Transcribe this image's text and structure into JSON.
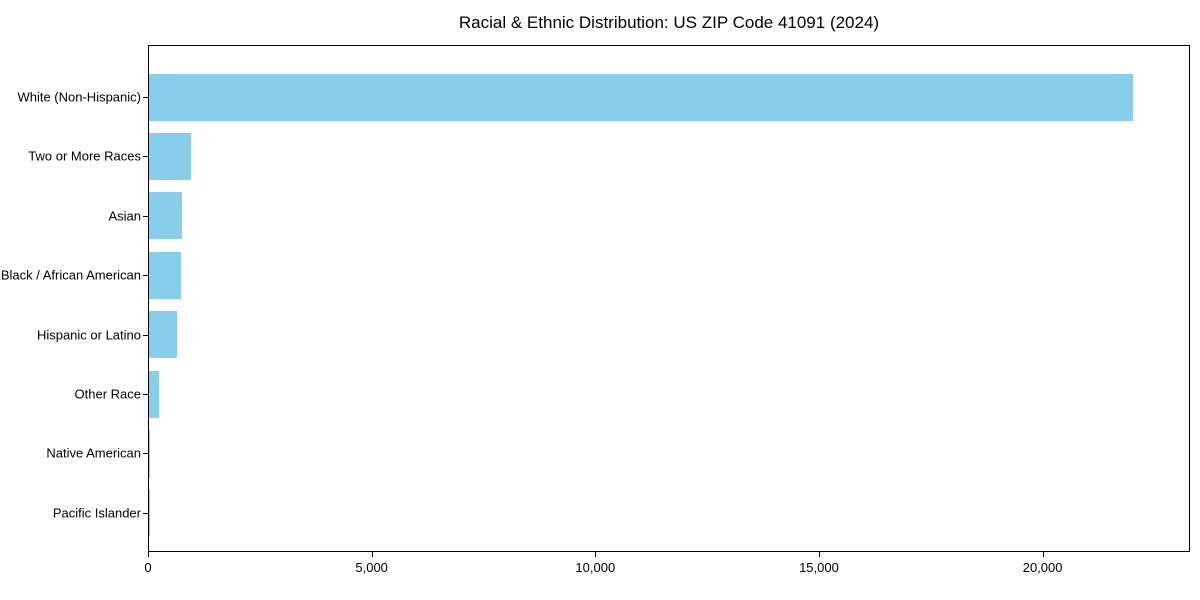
{
  "title": "Racial & Ethnic Distribution: US ZIP Code 41091 (2024)",
  "chart_data": {
    "type": "bar",
    "orientation": "horizontal",
    "title": "Racial & Ethnic Distribution: US ZIP Code 41091 (2024)",
    "categories": [
      "White (Non-Hispanic)",
      "Two or More Races",
      "Asian",
      "Black / African American",
      "Hispanic or Latino",
      "Other Race",
      "Native American",
      "Pacific Islander"
    ],
    "values": [
      22000,
      950,
      740,
      720,
      630,
      220,
      25,
      8
    ],
    "xlabel": "",
    "ylabel": "",
    "xlim": [
      0,
      23250
    ],
    "x_ticks": [
      {
        "value": 0,
        "label": "0"
      },
      {
        "value": 5000,
        "label": "5,000"
      },
      {
        "value": 10000,
        "label": "10,000"
      },
      {
        "value": 15000,
        "label": "15,000"
      },
      {
        "value": 20000,
        "label": "20,000"
      }
    ],
    "bar_color": "#87CEEB",
    "axis_color": "#000000",
    "text_color": "#000000",
    "grid": false,
    "legend": null,
    "categories_order": "top-to-bottom"
  }
}
